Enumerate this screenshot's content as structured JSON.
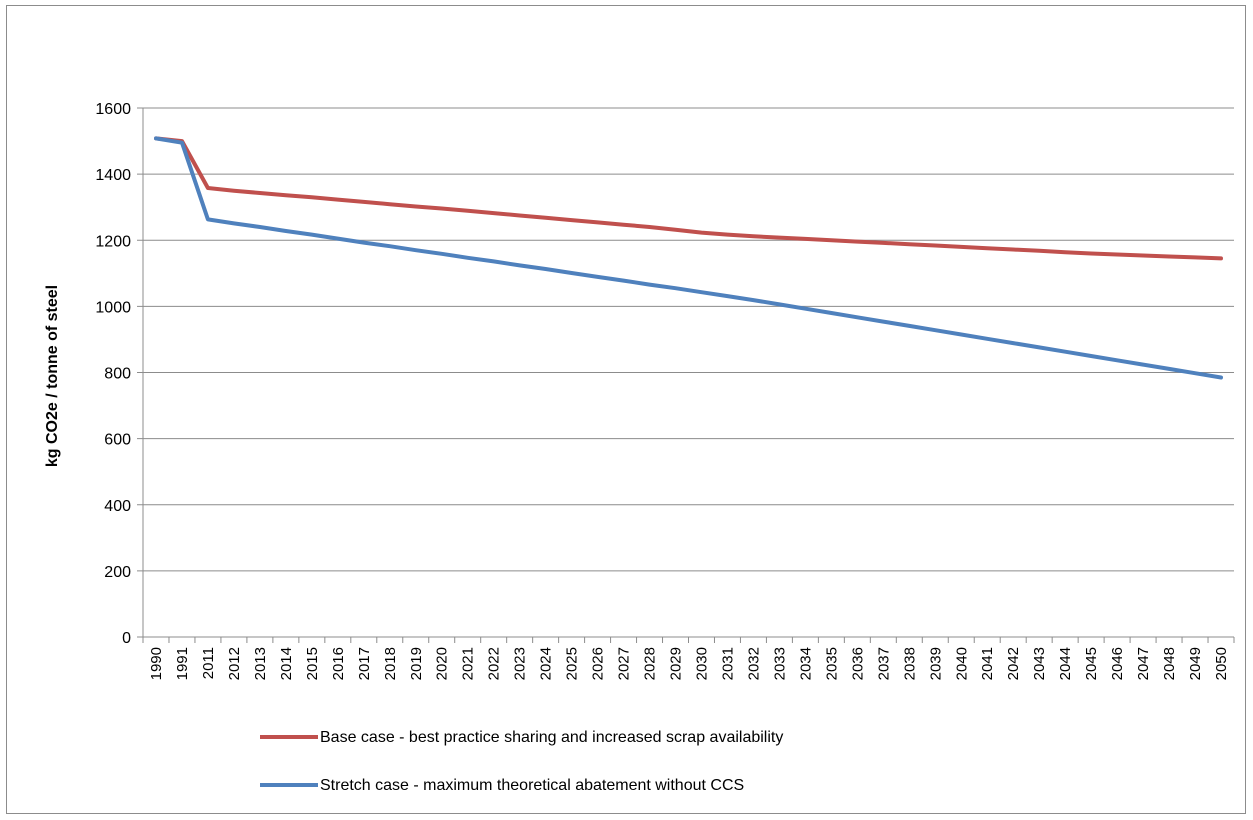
{
  "chart_data": {
    "type": "line",
    "title": "",
    "xlabel": "",
    "ylabel": "kg CO2e / tonne of steel",
    "ylim": [
      0,
      1600
    ],
    "yticks": [
      0,
      200,
      400,
      600,
      800,
      1000,
      1200,
      1400,
      1600
    ],
    "grid": true,
    "legend_position": "bottom",
    "categories": [
      "1990",
      "1991",
      "2011",
      "2012",
      "2013",
      "2014",
      "2015",
      "2016",
      "2017",
      "2018",
      "2019",
      "2020",
      "2021",
      "2022",
      "2023",
      "2024",
      "2025",
      "2026",
      "2027",
      "2028",
      "2029",
      "2030",
      "2031",
      "2032",
      "2033",
      "2034",
      "2035",
      "2036",
      "2037",
      "2038",
      "2039",
      "2040",
      "2041",
      "2042",
      "2043",
      "2044",
      "2045",
      "2046",
      "2047",
      "2048",
      "2049",
      "2050"
    ],
    "series": [
      {
        "name": "Base case - best practice sharing and increased scrap availability",
        "color": "#c0504d",
        "values": [
          1508,
          1500,
          1358,
          1350,
          1343,
          1336,
          1330,
          1323,
          1316,
          1309,
          1302,
          1296,
          1289,
          1282,
          1275,
          1268,
          1261,
          1254,
          1247,
          1240,
          1232,
          1223,
          1217,
          1212,
          1208,
          1204,
          1200,
          1196,
          1192,
          1188,
          1184,
          1180,
          1176,
          1172,
          1168,
          1164,
          1160,
          1157,
          1154,
          1151,
          1148,
          1145
        ]
      },
      {
        "name": "Stretch case - maximum theoretical abatement without CCS",
        "color": "#4f81bd",
        "values": [
          1508,
          1495,
          1263,
          1251,
          1240,
          1228,
          1217,
          1205,
          1193,
          1182,
          1170,
          1159,
          1147,
          1136,
          1124,
          1113,
          1101,
          1089,
          1078,
          1066,
          1055,
          1043,
          1031,
          1019,
          1006,
          993,
          980,
          967,
          954,
          941,
          928,
          915,
          902,
          889,
          876,
          863,
          850,
          837,
          824,
          811,
          798,
          785
        ]
      }
    ]
  }
}
